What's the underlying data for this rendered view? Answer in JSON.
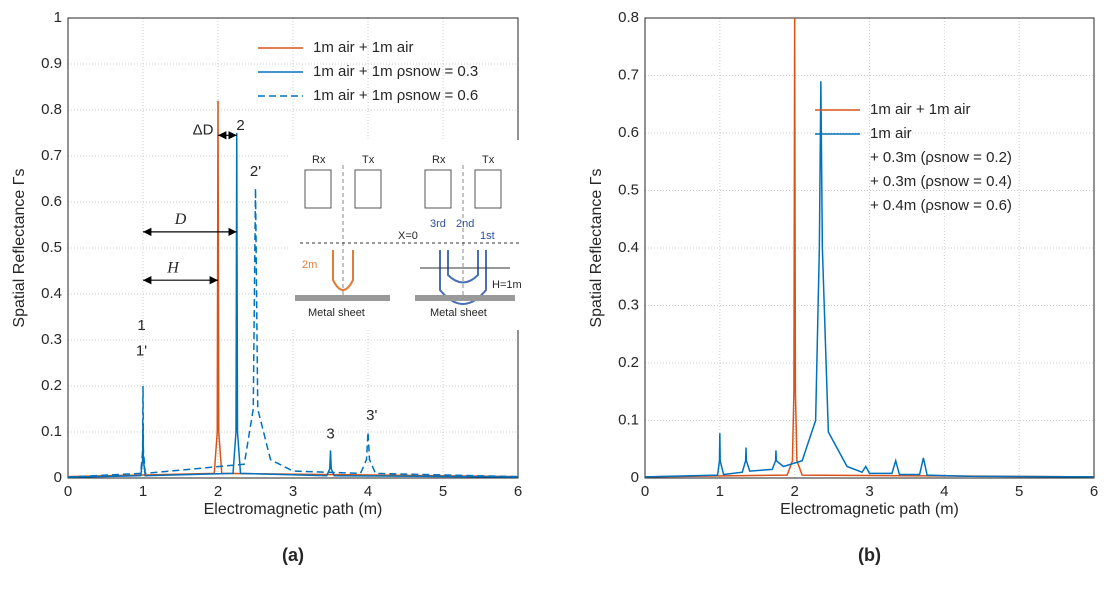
{
  "chart_data": [
    {
      "type": "line",
      "xlabel": "Electromagnetic path (m)",
      "ylabel": "Spatial Reflectance Γs",
      "caption": "(a)",
      "xlim": [
        0,
        6
      ],
      "ylim": [
        0,
        1
      ],
      "xticks": [
        0,
        1,
        2,
        3,
        4,
        5,
        6
      ],
      "yticks": [
        0,
        0.1,
        0.2,
        0.3,
        0.4,
        0.5,
        0.6,
        0.7,
        0.8,
        0.9,
        1
      ],
      "grid": true,
      "legend_loc": "upper right",
      "series": [
        {
          "name": "1m air + 1m air",
          "color": "#d95319",
          "dashed": false,
          "x": [
            0,
            1.95,
            1.99,
            2.0,
            2.01,
            2.05,
            6
          ],
          "values": [
            0.003,
            0.01,
            0.1,
            0.82,
            0.1,
            0.01,
            0.003
          ]
        },
        {
          "name": "1m air + 1m ρsnow = 0.3",
          "color": "#0072bd",
          "dashed": false,
          "x": [
            0,
            0.97,
            0.995,
            1.0,
            1.005,
            1.03,
            2.2,
            2.24,
            2.25,
            2.26,
            2.3,
            3.45,
            3.49,
            3.5,
            3.51,
            3.55,
            6
          ],
          "values": [
            0.002,
            0.005,
            0.04,
            0.12,
            0.04,
            0.005,
            0.01,
            0.1,
            0.75,
            0.1,
            0.01,
            0.005,
            0.02,
            0.06,
            0.02,
            0.005,
            0.002
          ]
        },
        {
          "name": "1m air + 1m ρsnow = 0.6",
          "color": "#0072bd",
          "dashed": true,
          "x": [
            0,
            0.97,
            0.995,
            1.0,
            1.005,
            1.03,
            2.35,
            2.47,
            2.5,
            2.53,
            2.7,
            3.0,
            3.9,
            3.98,
            4.0,
            4.02,
            4.1,
            6
          ],
          "values": [
            0.002,
            0.01,
            0.06,
            0.2,
            0.06,
            0.01,
            0.03,
            0.15,
            0.63,
            0.15,
            0.04,
            0.015,
            0.01,
            0.04,
            0.1,
            0.04,
            0.01,
            0.003
          ]
        }
      ],
      "annotations": [
        "1",
        "1'",
        "2",
        "2'",
        "3",
        "3'",
        "ΔD",
        "D",
        "H"
      ],
      "inset_labels": [
        "Rx",
        "Tx",
        "Rx",
        "Tx",
        "X=0",
        "2m",
        "3rd",
        "2nd",
        "1st",
        "H=1m",
        "Metal sheet",
        "Metal sheet"
      ]
    },
    {
      "type": "line",
      "xlabel": "Electromagnetic path (m)",
      "ylabel": "Spatial Reflectance Γs",
      "caption": "(b)",
      "xlim": [
        0,
        6
      ],
      "ylim": [
        0,
        0.8
      ],
      "xticks": [
        0,
        1,
        2,
        3,
        4,
        5,
        6
      ],
      "yticks": [
        0,
        0.1,
        0.2,
        0.3,
        0.4,
        0.5,
        0.6,
        0.7,
        0.8
      ],
      "grid": true,
      "legend_loc": "upper center",
      "series": [
        {
          "name": "1m air + 1m air",
          "color": "#d95319",
          "dashed": false,
          "x": [
            0,
            1.9,
            1.97,
            1.99,
            2.0,
            2.01,
            2.03,
            2.1,
            6
          ],
          "values": [
            0.002,
            0.005,
            0.03,
            0.15,
            0.8,
            0.15,
            0.03,
            0.005,
            0.002
          ]
        },
        {
          "name": "1m air",
          "color": "#0072bd",
          "dashed": false,
          "x": [
            0,
            0.97,
            0.995,
            1.0,
            1.005,
            1.05,
            1.3,
            1.345,
            1.35,
            1.355,
            1.4,
            1.7,
            1.745,
            1.75,
            1.755,
            1.85,
            2.1,
            2.28,
            2.33,
            2.35,
            2.37,
            2.45,
            2.7,
            2.9,
            2.95,
            3.0,
            3.3,
            3.35,
            3.4,
            3.67,
            3.72,
            3.77,
            4.3,
            6
          ],
          "values": [
            0.002,
            0.005,
            0.03,
            0.078,
            0.03,
            0.006,
            0.01,
            0.03,
            0.053,
            0.03,
            0.012,
            0.015,
            0.03,
            0.048,
            0.03,
            0.02,
            0.03,
            0.1,
            0.4,
            0.69,
            0.4,
            0.08,
            0.02,
            0.01,
            0.02,
            0.008,
            0.008,
            0.03,
            0.006,
            0.006,
            0.035,
            0.005,
            0.003,
            0.002
          ]
        }
      ],
      "legend_notes": [
        "+ 0.3m (ρsnow = 0.2)",
        "+ 0.3m (ρsnow = 0.4)",
        "+ 0.4m (ρsnow = 0.6)"
      ]
    }
  ]
}
